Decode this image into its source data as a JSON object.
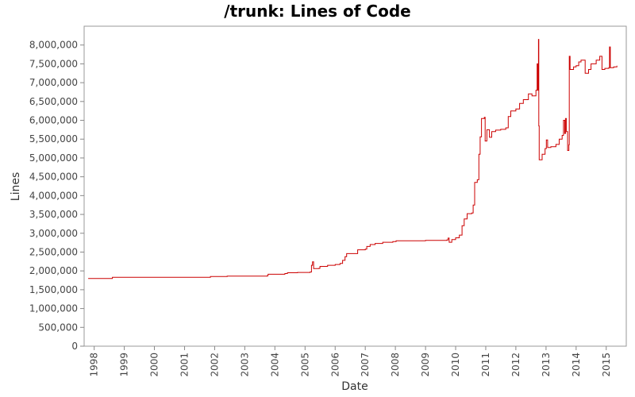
{
  "chart_data": {
    "type": "line",
    "title": "/trunk: Lines of Code",
    "xlabel": "Date",
    "ylabel": "Lines",
    "xlim": [
      "1997-09-01",
      "2015-09-01"
    ],
    "ylim": [
      0,
      8500000
    ],
    "x_ticks": [
      "1998",
      "1999",
      "2000",
      "2001",
      "2002",
      "2003",
      "2004",
      "2005",
      "2006",
      "2007",
      "2008",
      "2009",
      "2010",
      "2011",
      "2012",
      "2013",
      "2014",
      "2015"
    ],
    "y_ticks": [
      {
        "value": 0,
        "label": "0"
      },
      {
        "value": 500000,
        "label": "500,000"
      },
      {
        "value": 1000000,
        "label": "1,000,000"
      },
      {
        "value": 1500000,
        "label": "1,500,000"
      },
      {
        "value": 2000000,
        "label": "2,000,000"
      },
      {
        "value": 2500000,
        "label": "2,500,000"
      },
      {
        "value": 3000000,
        "label": "3,000,000"
      },
      {
        "value": 3500000,
        "label": "3,500,000"
      },
      {
        "value": 4000000,
        "label": "4,000,000"
      },
      {
        "value": 4500000,
        "label": "4,500,000"
      },
      {
        "value": 5000000,
        "label": "5,000,000"
      },
      {
        "value": 5500000,
        "label": "5,500,000"
      },
      {
        "value": 6000000,
        "label": "6,000,000"
      },
      {
        "value": 6500000,
        "label": "6,500,000"
      },
      {
        "value": 7000000,
        "label": "7,000,000"
      },
      {
        "value": 7500000,
        "label": "7,500,000"
      },
      {
        "value": 8000000,
        "label": "8,000,000"
      }
    ],
    "grid": false,
    "series": [
      {
        "color": "#cc0000",
        "points": [
          [
            "1997-10-20",
            1800000
          ],
          [
            "1998-08-01",
            1800000
          ],
          [
            "1998-08-10",
            1830000
          ],
          [
            "2001-11-01",
            1830000
          ],
          [
            "2001-11-10",
            1850000
          ],
          [
            "2002-06-01",
            1860000
          ],
          [
            "2003-10-01",
            1870000
          ],
          [
            "2003-10-10",
            1910000
          ],
          [
            "2004-05-01",
            1930000
          ],
          [
            "2004-06-01",
            1950000
          ],
          [
            "2004-10-01",
            1960000
          ],
          [
            "2005-03-01",
            1970000
          ],
          [
            "2005-03-20",
            2150000
          ],
          [
            "2005-04-01",
            2240000
          ],
          [
            "2005-04-15",
            2060000
          ],
          [
            "2005-06-20",
            2070000
          ],
          [
            "2005-07-01",
            2120000
          ],
          [
            "2005-10-01",
            2150000
          ],
          [
            "2006-01-01",
            2170000
          ],
          [
            "2006-03-01",
            2200000
          ],
          [
            "2006-04-01",
            2280000
          ],
          [
            "2006-05-01",
            2380000
          ],
          [
            "2006-05-20",
            2460000
          ],
          [
            "2006-09-01",
            2460000
          ],
          [
            "2006-10-01",
            2560000
          ],
          [
            "2007-01-01",
            2580000
          ],
          [
            "2007-01-20",
            2650000
          ],
          [
            "2007-03-01",
            2700000
          ],
          [
            "2007-05-01",
            2730000
          ],
          [
            "2007-08-01",
            2760000
          ],
          [
            "2007-12-01",
            2780000
          ],
          [
            "2008-01-10",
            2800000
          ],
          [
            "2008-06-01",
            2800000
          ],
          [
            "2009-01-01",
            2810000
          ],
          [
            "2009-09-15",
            2820000
          ],
          [
            "2009-10-01",
            2870000
          ],
          [
            "2009-10-15",
            2760000
          ],
          [
            "2009-11-15",
            2830000
          ],
          [
            "2010-01-01",
            2880000
          ],
          [
            "2010-02-15",
            2950000
          ],
          [
            "2010-03-20",
            3200000
          ],
          [
            "2010-04-15",
            3380000
          ],
          [
            "2010-05-20",
            3520000
          ],
          [
            "2010-07-15",
            3540000
          ],
          [
            "2010-08-01",
            3750000
          ],
          [
            "2010-08-20",
            4350000
          ],
          [
            "2010-09-20",
            4420000
          ],
          [
            "2010-10-10",
            5100000
          ],
          [
            "2010-10-25",
            5560000
          ],
          [
            "2010-11-10",
            6050000
          ],
          [
            "2010-12-15",
            6080000
          ],
          [
            "2010-12-25",
            5450000
          ],
          [
            "2011-01-15",
            5750000
          ],
          [
            "2011-02-15",
            5550000
          ],
          [
            "2011-03-15",
            5700000
          ],
          [
            "2011-05-01",
            5740000
          ],
          [
            "2011-07-01",
            5760000
          ],
          [
            "2011-09-01",
            5800000
          ],
          [
            "2011-10-01",
            6100000
          ],
          [
            "2011-11-01",
            6250000
          ],
          [
            "2012-01-01",
            6300000
          ],
          [
            "2012-02-15",
            6450000
          ],
          [
            "2012-04-01",
            6550000
          ],
          [
            "2012-06-01",
            6700000
          ],
          [
            "2012-07-15",
            6650000
          ],
          [
            "2012-09-01",
            6800000
          ],
          [
            "2012-09-15",
            7500000
          ],
          [
            "2012-09-25",
            6800000
          ],
          [
            "2012-10-01",
            8150000
          ],
          [
            "2012-10-05",
            5850000
          ],
          [
            "2012-10-10",
            4950000
          ],
          [
            "2012-11-15",
            5100000
          ],
          [
            "2012-12-20",
            5250000
          ],
          [
            "2013-01-05",
            5480000
          ],
          [
            "2013-01-20",
            5280000
          ],
          [
            "2013-03-01",
            5300000
          ],
          [
            "2013-05-01",
            5360000
          ],
          [
            "2013-06-10",
            5500000
          ],
          [
            "2013-07-15",
            5600000
          ],
          [
            "2013-08-01",
            6000000
          ],
          [
            "2013-08-15",
            5650000
          ],
          [
            "2013-08-25",
            6050000
          ],
          [
            "2013-09-05",
            5700000
          ],
          [
            "2013-09-20",
            5200000
          ],
          [
            "2013-10-05",
            5350000
          ],
          [
            "2013-10-10",
            7700000
          ],
          [
            "2013-10-20",
            7350000
          ],
          [
            "2013-12-01",
            7420000
          ],
          [
            "2014-01-01",
            7450000
          ],
          [
            "2014-02-01",
            7550000
          ],
          [
            "2014-03-01",
            7600000
          ],
          [
            "2014-04-01",
            7600000
          ],
          [
            "2014-04-20",
            7250000
          ],
          [
            "2014-06-01",
            7350000
          ],
          [
            "2014-07-01",
            7500000
          ],
          [
            "2014-09-01",
            7600000
          ],
          [
            "2014-10-15",
            7700000
          ],
          [
            "2014-11-10",
            7350000
          ],
          [
            "2014-12-15",
            7380000
          ],
          [
            "2015-02-01",
            7400000
          ],
          [
            "2015-02-10",
            7950000
          ],
          [
            "2015-02-20",
            7400000
          ],
          [
            "2015-04-01",
            7420000
          ],
          [
            "2015-05-10",
            7450000
          ]
        ]
      }
    ]
  }
}
